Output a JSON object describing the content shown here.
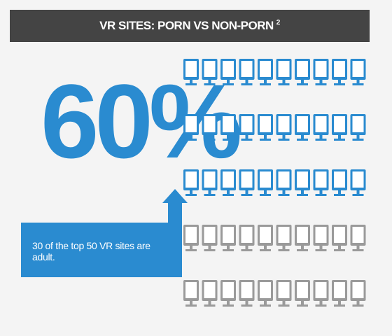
{
  "title": {
    "text": "VR SITES: PORN VS NON-PORN",
    "footnote": "2"
  },
  "headline": {
    "percent": "60%"
  },
  "callout": {
    "text": "30 of the top 50 VR sites are adult."
  },
  "colors": {
    "adult": "#2a8bd0",
    "non_adult": "#9a9a9a",
    "title_bg": "#444444",
    "background": "#f4f4f4"
  },
  "chart_data": {
    "type": "pictograph",
    "icon": "monitor-icon",
    "total": 50,
    "adult": 30,
    "non_adult": 20,
    "rows": 5,
    "columns": 10,
    "percent_adult": 60
  }
}
